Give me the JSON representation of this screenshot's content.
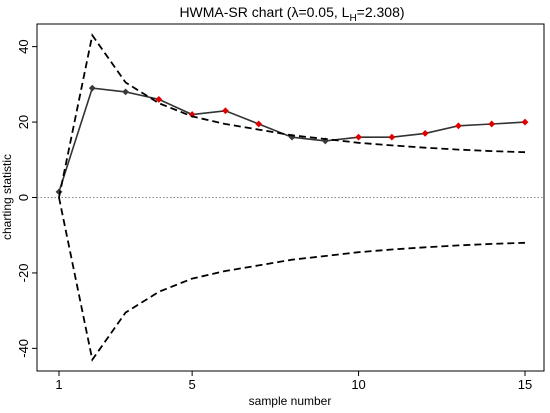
{
  "chart_data": {
    "type": "line",
    "title_main": "HWMA-SR chart (λ=0.05, L",
    "title_sub": "H",
    "title_tail": "=2.308)",
    "xlabel": "sample number",
    "ylabel": "charting statistic",
    "xlim": [
      1,
      15
    ],
    "ylim": [
      -46,
      46
    ],
    "xticks": [
      1,
      5,
      10,
      15
    ],
    "yticks": [
      -40,
      -20,
      0,
      20,
      40
    ],
    "ytick_labels": [
      "-40",
      "-20",
      "0",
      "20",
      "40"
    ],
    "center_line": 0,
    "grid": false,
    "series": [
      {
        "role": "statistic",
        "style": "solid-markers",
        "x": [
          1,
          2,
          3,
          4,
          5,
          6,
          7,
          8,
          9,
          10,
          11,
          12,
          13,
          14,
          15
        ],
        "values": [
          1.5,
          29,
          28,
          26,
          22,
          23,
          19.5,
          16,
          15,
          16,
          16,
          17,
          19,
          19.5,
          20
        ],
        "out_of_control": [
          false,
          false,
          false,
          true,
          true,
          true,
          true,
          false,
          false,
          true,
          true,
          true,
          true,
          true,
          true
        ]
      },
      {
        "role": "upper-limit",
        "style": "dashed",
        "x": [
          1,
          2,
          3,
          4,
          5,
          6,
          7,
          8,
          9,
          10,
          11,
          12,
          13,
          14,
          15
        ],
        "values": [
          0,
          43,
          30.5,
          25,
          21.5,
          19.5,
          18,
          16.5,
          15.5,
          14.5,
          13.8,
          13.2,
          12.7,
          12.3,
          12
        ]
      },
      {
        "role": "lower-limit",
        "style": "dashed",
        "x": [
          1,
          2,
          3,
          4,
          5,
          6,
          7,
          8,
          9,
          10,
          11,
          12,
          13,
          14,
          15
        ],
        "values": [
          0,
          -43,
          -30.5,
          -25,
          -21.5,
          -19.5,
          -18,
          -16.5,
          -15.5,
          -14.5,
          -13.8,
          -13.2,
          -12.7,
          -12.3,
          -12
        ]
      }
    ],
    "colors": {
      "in_control_marker": "#3a3a3a",
      "out_of_control_marker": "#e00000",
      "line": "#333333",
      "limits": "#000000"
    }
  }
}
